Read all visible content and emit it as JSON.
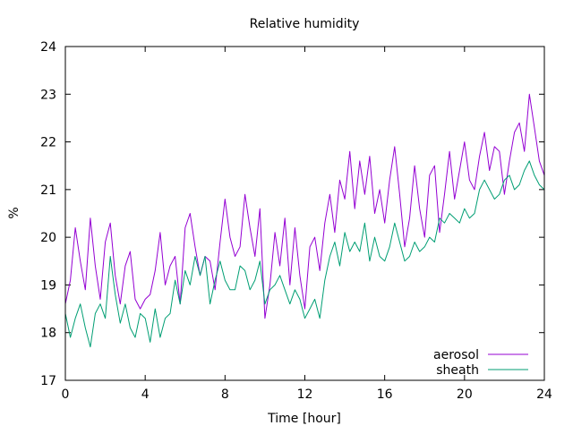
{
  "chart_data": {
    "type": "line",
    "title": "Relative humidity",
    "xlabel": "Time [hour]",
    "ylabel": "%",
    "xlim": [
      0,
      24
    ],
    "ylim": [
      17,
      24
    ],
    "xticks": [
      0,
      4,
      8,
      12,
      16,
      20,
      24
    ],
    "yticks": [
      17,
      18,
      19,
      20,
      21,
      22,
      23,
      24
    ],
    "grid": false,
    "legend_position": "bottom-right",
    "series": [
      {
        "name": "aerosol",
        "color": "#9400d3",
        "x": [
          0.0,
          0.25,
          0.5,
          0.75,
          1.0,
          1.25,
          1.5,
          1.75,
          2.0,
          2.25,
          2.5,
          2.75,
          3.0,
          3.25,
          3.5,
          3.75,
          4.0,
          4.25,
          4.5,
          4.75,
          5.0,
          5.25,
          5.5,
          5.75,
          6.0,
          6.25,
          6.5,
          6.75,
          7.0,
          7.25,
          7.5,
          7.75,
          8.0,
          8.25,
          8.5,
          8.75,
          9.0,
          9.25,
          9.5,
          9.75,
          10.0,
          10.25,
          10.5,
          10.75,
          11.0,
          11.25,
          11.5,
          11.75,
          12.0,
          12.25,
          12.5,
          12.75,
          13.0,
          13.25,
          13.5,
          13.75,
          14.0,
          14.25,
          14.5,
          14.75,
          15.0,
          15.25,
          15.5,
          15.75,
          16.0,
          16.25,
          16.5,
          16.75,
          17.0,
          17.25,
          17.5,
          17.75,
          18.0,
          18.25,
          18.5,
          18.75,
          19.0,
          19.25,
          19.5,
          19.75,
          20.0,
          20.25,
          20.5,
          20.75,
          21.0,
          21.25,
          21.5,
          21.75,
          22.0,
          22.25,
          22.5,
          22.75,
          23.0,
          23.25,
          23.5,
          23.75,
          24.0
        ],
        "y": [
          18.6,
          19.1,
          20.2,
          19.5,
          18.9,
          20.4,
          19.4,
          18.7,
          19.9,
          20.3,
          19.2,
          18.6,
          19.4,
          19.7,
          18.7,
          18.5,
          18.7,
          18.8,
          19.3,
          20.1,
          19.0,
          19.4,
          19.6,
          18.6,
          20.2,
          20.5,
          19.8,
          19.2,
          19.6,
          19.5,
          18.9,
          19.9,
          20.8,
          20.0,
          19.6,
          19.8,
          20.9,
          20.2,
          19.6,
          20.6,
          18.3,
          19.0,
          20.1,
          19.4,
          20.4,
          19.0,
          20.2,
          19.2,
          18.5,
          19.8,
          20.0,
          19.3,
          20.3,
          20.9,
          20.1,
          21.2,
          20.8,
          21.8,
          20.6,
          21.6,
          20.9,
          21.7,
          20.5,
          21.0,
          20.3,
          21.2,
          21.9,
          20.9,
          19.8,
          20.4,
          21.5,
          20.6,
          20.0,
          21.3,
          21.5,
          20.1,
          20.9,
          21.8,
          20.8,
          21.4,
          22.0,
          21.2,
          21.0,
          21.7,
          22.2,
          21.4,
          21.9,
          21.8,
          20.9,
          21.6,
          22.2,
          22.4,
          21.8,
          23.0,
          22.3,
          21.6,
          21.3
        ]
      },
      {
        "name": "sheath",
        "color": "#009e73",
        "x": [
          0.0,
          0.25,
          0.5,
          0.75,
          1.0,
          1.25,
          1.5,
          1.75,
          2.0,
          2.25,
          2.5,
          2.75,
          3.0,
          3.25,
          3.5,
          3.75,
          4.0,
          4.25,
          4.5,
          4.75,
          5.0,
          5.25,
          5.5,
          5.75,
          6.0,
          6.25,
          6.5,
          6.75,
          7.0,
          7.25,
          7.5,
          7.75,
          8.0,
          8.25,
          8.5,
          8.75,
          9.0,
          9.25,
          9.5,
          9.75,
          10.0,
          10.25,
          10.5,
          10.75,
          11.0,
          11.25,
          11.5,
          11.75,
          12.0,
          12.25,
          12.5,
          12.75,
          13.0,
          13.25,
          13.5,
          13.75,
          14.0,
          14.25,
          14.5,
          14.75,
          15.0,
          15.25,
          15.5,
          15.75,
          16.0,
          16.25,
          16.5,
          16.75,
          17.0,
          17.25,
          17.5,
          17.75,
          18.0,
          18.25,
          18.5,
          18.75,
          19.0,
          19.25,
          19.5,
          19.75,
          20.0,
          20.25,
          20.5,
          20.75,
          21.0,
          21.25,
          21.5,
          21.75,
          22.0,
          22.25,
          22.5,
          22.75,
          23.0,
          23.25,
          23.5,
          23.75,
          24.0
        ],
        "y": [
          18.4,
          17.9,
          18.3,
          18.6,
          18.1,
          17.7,
          18.4,
          18.6,
          18.3,
          19.6,
          18.8,
          18.2,
          18.6,
          18.1,
          17.9,
          18.4,
          18.3,
          17.8,
          18.5,
          17.9,
          18.3,
          18.4,
          19.1,
          18.6,
          19.3,
          19.0,
          19.6,
          19.2,
          19.6,
          18.6,
          19.1,
          19.5,
          19.1,
          18.9,
          18.9,
          19.4,
          19.3,
          18.9,
          19.1,
          19.5,
          18.6,
          18.9,
          19.0,
          19.2,
          18.9,
          18.6,
          18.9,
          18.7,
          18.3,
          18.5,
          18.7,
          18.3,
          19.1,
          19.6,
          19.9,
          19.4,
          20.1,
          19.7,
          19.9,
          19.7,
          20.3,
          19.5,
          20.0,
          19.6,
          19.5,
          19.8,
          20.3,
          19.9,
          19.5,
          19.6,
          19.9,
          19.7,
          19.8,
          20.0,
          19.9,
          20.4,
          20.3,
          20.5,
          20.4,
          20.3,
          20.6,
          20.4,
          20.5,
          21.0,
          21.2,
          21.0,
          20.8,
          20.9,
          21.2,
          21.3,
          21.0,
          21.1,
          21.4,
          21.6,
          21.3,
          21.1,
          21.0
        ]
      }
    ]
  }
}
